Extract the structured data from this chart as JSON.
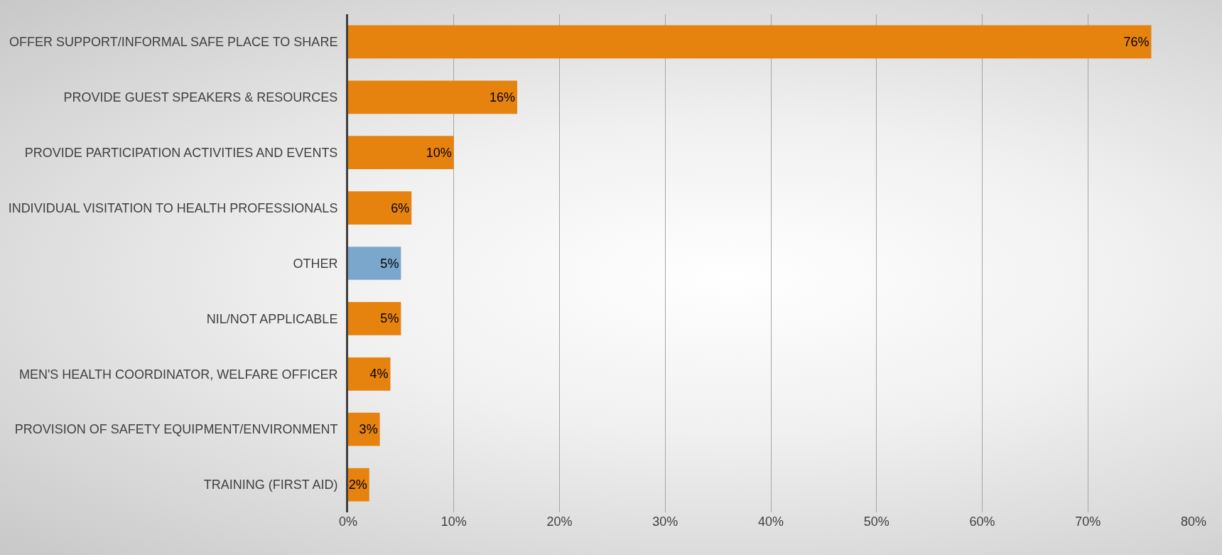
{
  "chart_data": {
    "type": "bar",
    "orientation": "horizontal",
    "categories": [
      "OFFER SUPPORT/INFORMAL SAFE PLACE TO SHARE",
      "PROVIDE GUEST SPEAKERS & RESOURCES",
      "PROVIDE PARTICIPATION ACTIVITIES AND EVENTS",
      "INDIVIDUAL VISITATION TO HEALTH PROFESSIONALS",
      "OTHER",
      "NIL/NOT APPLICABLE",
      "MEN'S HEALTH COORDINATOR, WELFARE OFFICER",
      "PROVISION OF SAFETY EQUIPMENT/ENVIRONMENT",
      "TRAINING (FIRST AID)"
    ],
    "values": [
      76,
      16,
      10,
      6,
      5,
      5,
      4,
      3,
      2
    ],
    "colors": [
      "#e6820e",
      "#e6820e",
      "#e6820e",
      "#e6820e",
      "#7ba7cc",
      "#e6820e",
      "#e6820e",
      "#e6820e",
      "#e6820e"
    ],
    "value_labels": [
      "76%",
      "16%",
      "10%",
      "6%",
      "5%",
      "5%",
      "4%",
      "3%",
      "2%"
    ],
    "xlim": [
      0,
      80
    ],
    "xticks": [
      {
        "value": 0,
        "label": "0%"
      },
      {
        "value": 10,
        "label": "10%"
      },
      {
        "value": 20,
        "label": "20%"
      },
      {
        "value": 30,
        "label": "30%"
      },
      {
        "value": 40,
        "label": "40%"
      },
      {
        "value": 50,
        "label": "50%"
      },
      {
        "value": 60,
        "label": "60%"
      },
      {
        "value": 70,
        "label": "70%"
      },
      {
        "value": 80,
        "label": "80%"
      }
    ],
    "grid": "x"
  }
}
